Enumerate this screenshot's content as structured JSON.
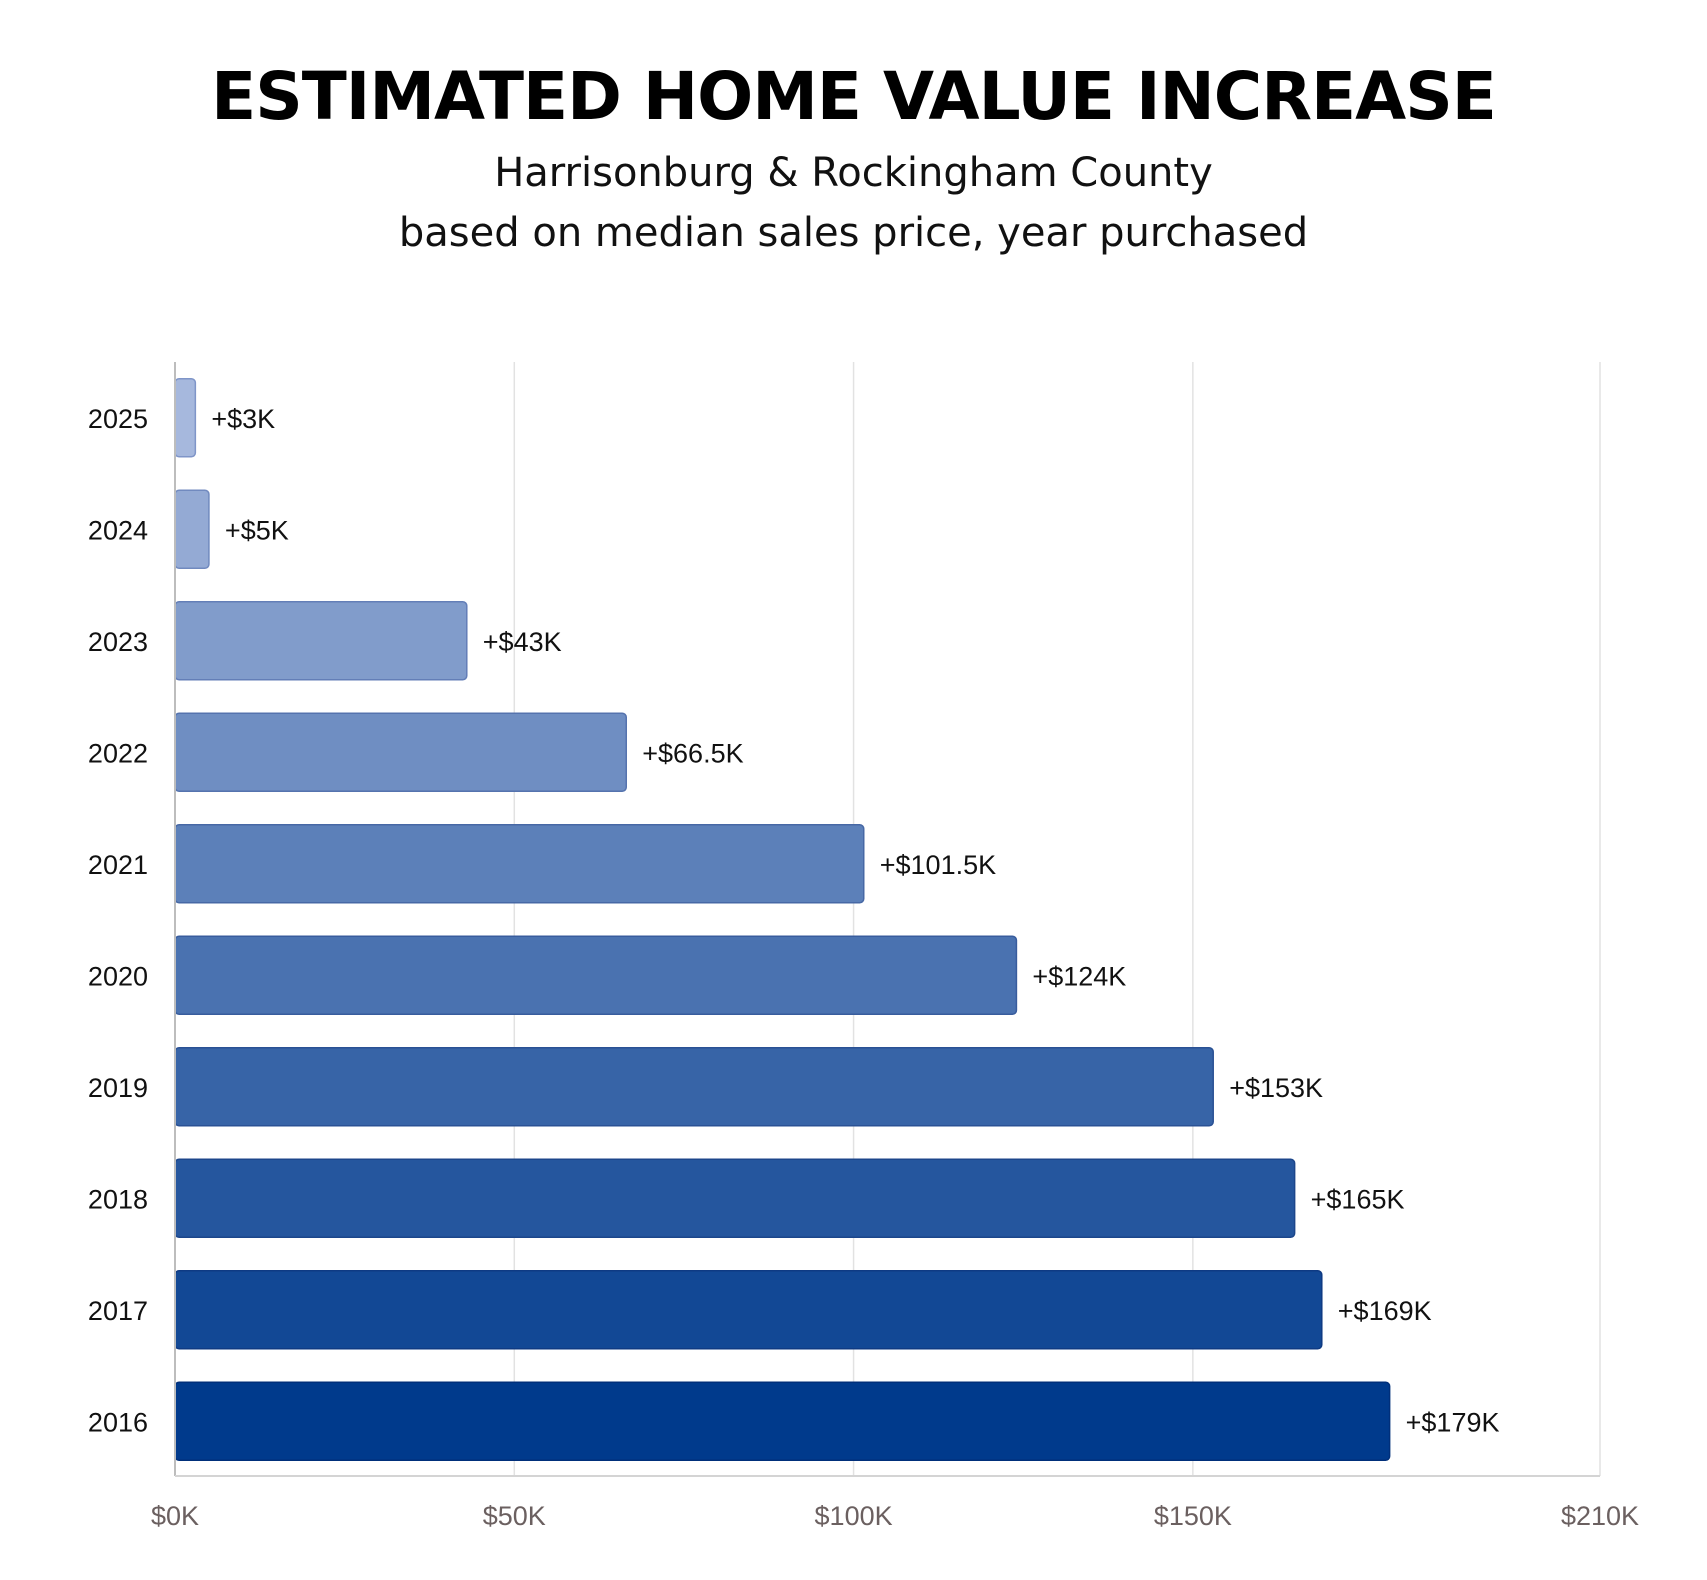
{
  "chart_data": {
    "type": "bar",
    "orientation": "horizontal",
    "title": "ESTIMATED HOME VALUE INCREASE",
    "subtitle": [
      "Harrisonburg & Rockingham County",
      "based on median sales price, year purchased"
    ],
    "categories": [
      "2025",
      "2024",
      "2023",
      "2022",
      "2021",
      "2020",
      "2019",
      "2018",
      "2017",
      "2016"
    ],
    "values": [
      3,
      5,
      43,
      66.5,
      101.5,
      124,
      153,
      165,
      169,
      179
    ],
    "value_labels": [
      "+$3K",
      "+$5K",
      "+$43K",
      "+$66.5K",
      "+$101.5K",
      "+$124K",
      "+$153K",
      "+$165K",
      "+$169K",
      "+$179K"
    ],
    "x_ticks": [
      0,
      50,
      100,
      150,
      210
    ],
    "x_tick_labels": [
      "$0K",
      "$50K",
      "$100K",
      "$150K",
      "$210K"
    ],
    "xlim": [
      0,
      210
    ],
    "grid": true,
    "colors": {
      "light": "#a6b8dd",
      "dark": "#003a8c",
      "grid": "#e2e2e2",
      "tick_label": "#6b6060"
    }
  }
}
